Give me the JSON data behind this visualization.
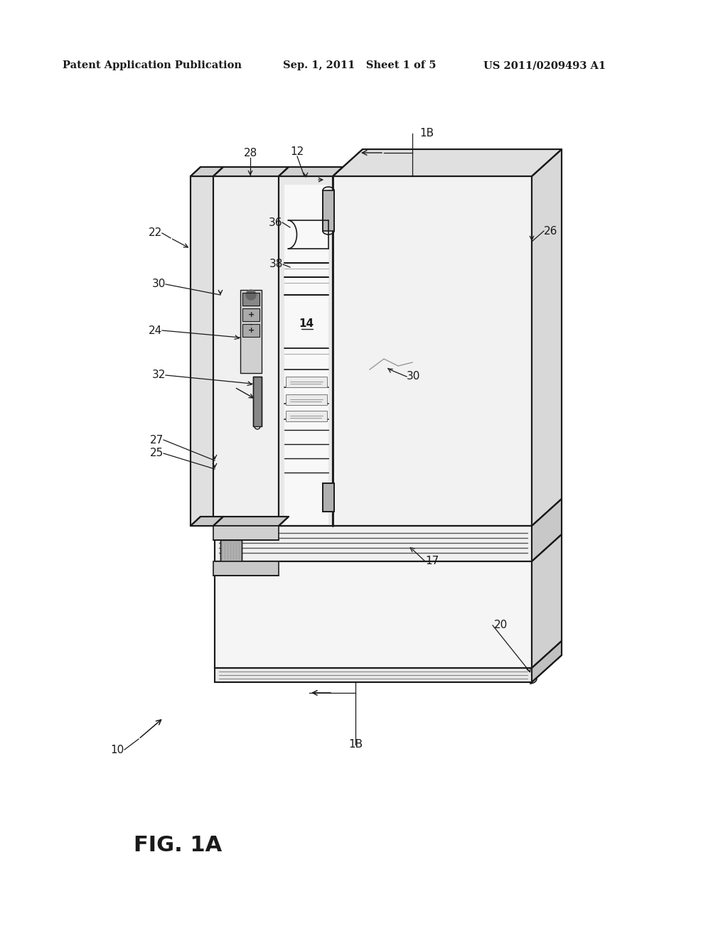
{
  "background_color": "#ffffff",
  "header_left": "Patent Application Publication",
  "header_center": "Sep. 1, 2011   Sheet 1 of 5",
  "header_right": "US 2011/0209493 A1",
  "figure_label": "FIG. 1A",
  "line_color": "#1a1a1a",
  "light_gray": "#c8c8c8",
  "mid_gray": "#888888",
  "dark_gray": "#444444"
}
